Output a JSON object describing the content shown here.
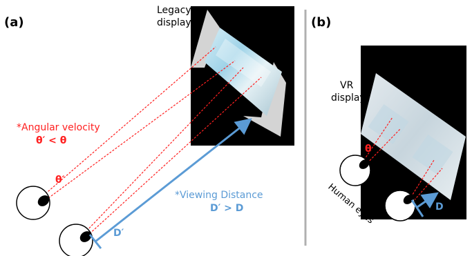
{
  "panel_a": {
    "label": "(a)",
    "display_label": [
      "Legacy",
      "display"
    ],
    "angular_velocity": {
      "heading": "*Angular velocity",
      "relation": "θ′ < θ"
    },
    "theta_prime": "θ′",
    "viewing_distance": {
      "heading": "*Viewing Distance",
      "relation": "D′ > D"
    },
    "d_prime": "D′"
  },
  "panel_b": {
    "label": "(b)",
    "display_label": [
      "VR",
      "display"
    ],
    "theta": "θ",
    "eyes_label": "Human eyes",
    "d": "D"
  },
  "colors": {
    "red": "#ff2020",
    "blue": "#5b9bd5",
    "divider": "#b0b0b0",
    "screen": "#000000",
    "frame": "#d0d0d0"
  }
}
